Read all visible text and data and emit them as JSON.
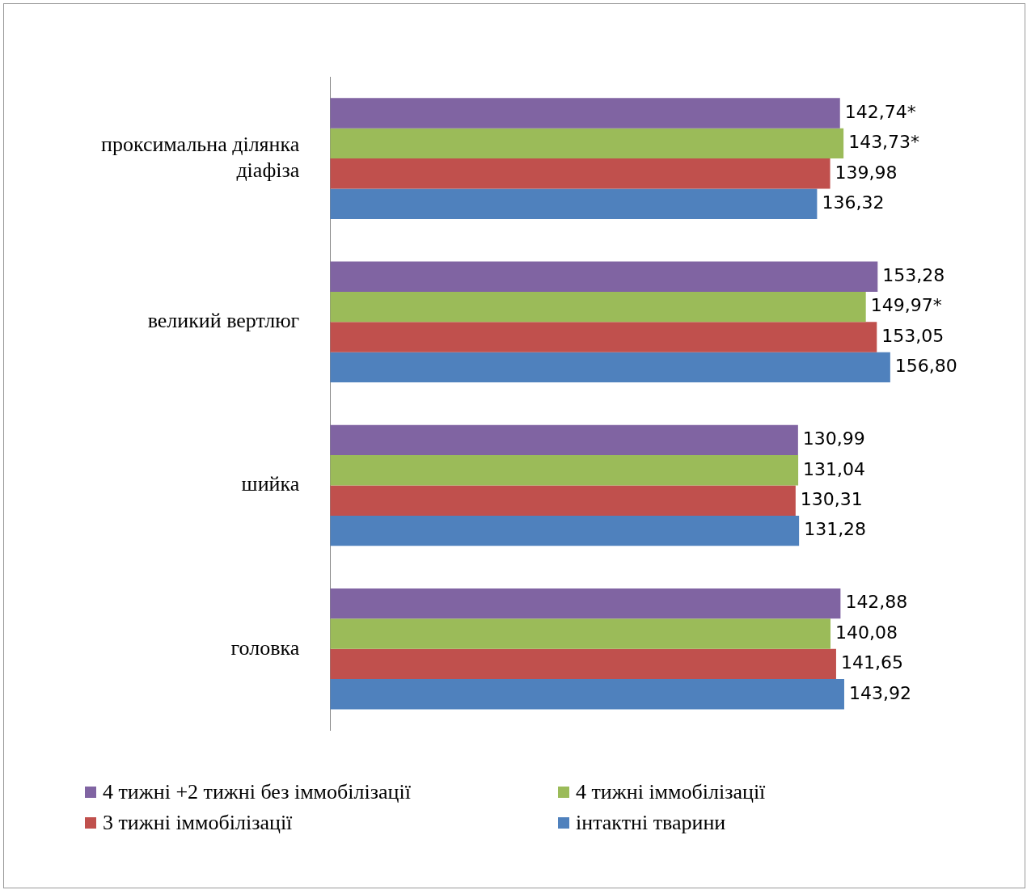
{
  "chart_data": {
    "type": "bar",
    "orientation": "horizontal",
    "legend": "bottom",
    "categories": [
      "проксимальна ділянка діафіза",
      "великий вертлюг",
      "шийка",
      "головка"
    ],
    "series": [
      {
        "name": "4 тижні +2 тижні без іммобілізації",
        "color": "#8064a2",
        "values": [
          142.74,
          153.28,
          130.99,
          142.88
        ],
        "value_labels": [
          "142,74*",
          "153,28",
          "130,99",
          "142,88"
        ]
      },
      {
        "name": "4 тижні іммобілізації",
        "color": "#9bbb59",
        "values": [
          143.73,
          149.97,
          131.04,
          140.08
        ],
        "value_labels": [
          "143,73*",
          "149,97*",
          "131,04",
          "140,08"
        ]
      },
      {
        "name": "3 тижні іммобілізації",
        "color": "#c0504d",
        "values": [
          139.98,
          153.05,
          130.31,
          141.65
        ],
        "value_labels": [
          "139,98",
          "153,05",
          "130,31",
          "141,65"
        ]
      },
      {
        "name": "інтактні тварини",
        "color": "#4f81bd",
        "values": [
          136.32,
          156.8,
          131.28,
          143.92
        ],
        "value_labels": [
          "136,32",
          "156,80",
          "131,28",
          "143,92"
        ]
      }
    ]
  }
}
